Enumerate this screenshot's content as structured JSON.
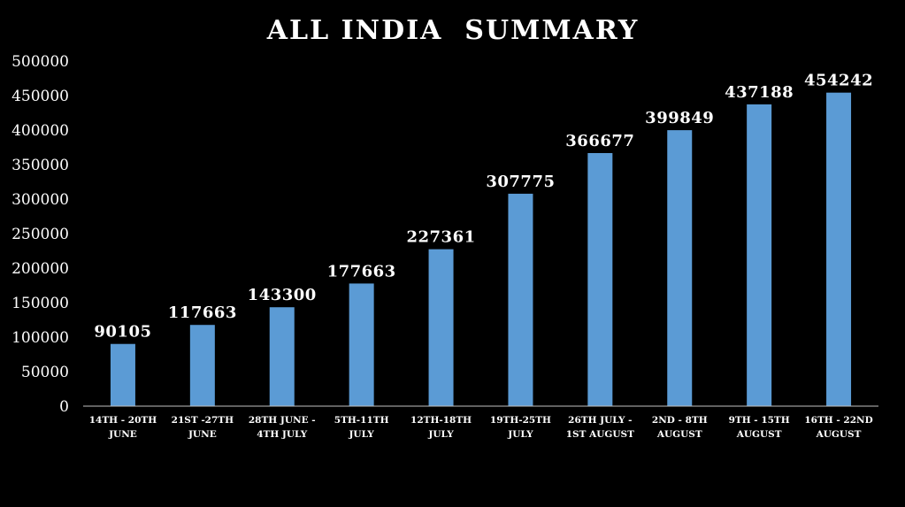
{
  "chart_data": {
    "type": "bar",
    "title": "ALL INDIA  SUMMARY",
    "categories": [
      [
        "14TH - 20TH",
        "JUNE"
      ],
      [
        "21ST -27TH",
        "JUNE"
      ],
      [
        "28TH JUNE -",
        "4TH JULY"
      ],
      [
        "5TH-11TH",
        "JULY"
      ],
      [
        "12TH-18TH",
        "JULY"
      ],
      [
        "19TH-25TH",
        "JULY"
      ],
      [
        "26TH JULY -",
        "1ST AUGUST"
      ],
      [
        "2ND - 8TH",
        "AUGUST"
      ],
      [
        "9TH - 15TH",
        "AUGUST"
      ],
      [
        "16TH - 22ND",
        "AUGUST"
      ]
    ],
    "values": [
      90105,
      117663,
      143300,
      177663,
      227361,
      307775,
      366677,
      399849,
      437188,
      454242
    ],
    "data_labels": [
      "90105",
      "117663",
      "143300",
      "177663",
      "227361",
      "307775",
      "366677",
      "399849",
      "437188",
      "454242"
    ],
    "xlabel": "",
    "ylabel": "",
    "ylim": [
      0,
      500000
    ],
    "yticks": [
      0,
      50000,
      100000,
      150000,
      200000,
      250000,
      300000,
      350000,
      400000,
      450000,
      500000
    ],
    "ytick_labels": [
      "0",
      "50000",
      "100000",
      "150000",
      "200000",
      "250000",
      "300000",
      "350000",
      "400000",
      "450000",
      "500000"
    ],
    "grid": false,
    "legend": "none",
    "colors": {
      "background": "#000000",
      "bar": "#5b9bd5",
      "text": "#ffffff",
      "axis": "#bfbfbf"
    }
  }
}
